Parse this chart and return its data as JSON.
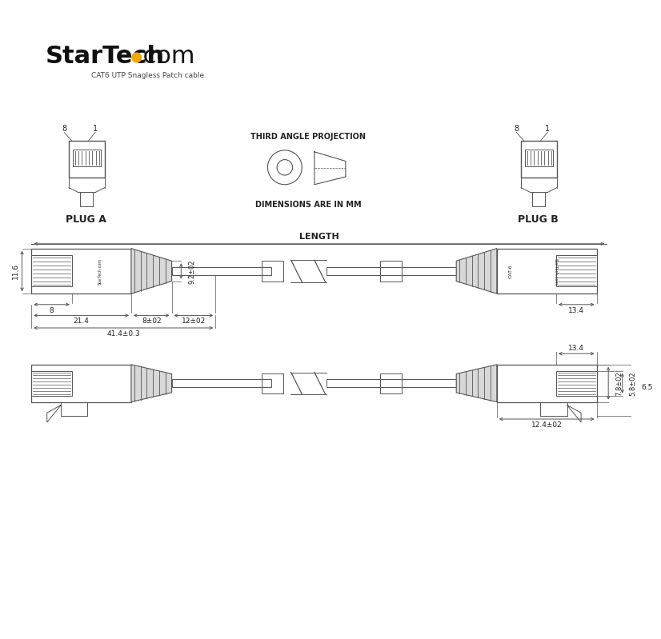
{
  "bg_color": "#ffffff",
  "line_color": "#555555",
  "text_color": "#222222",
  "dot_color": "#f5a800",
  "subtitle": "CAT6 UTP Snagless Patch cable",
  "plug_a_label": "PLUG A",
  "plug_b_label": "PLUG B",
  "third_angle": "THIRD ANGLE PROJECTION",
  "dimensions_mm": "DIMENSIONS ARE IN MM",
  "length_label": "LENGTH",
  "dim_11_6": "11.6",
  "dim_8": "8",
  "dim_21_4": "21.4",
  "dim_8pm02": "8±02",
  "dim_12pm02": "12±02",
  "dim_41_4pm03": "41.4±0.3",
  "dim_9_2pm02": "9.2±02",
  "dim_13_4": "13.4",
  "dim_7_8pm02": "7.8±02",
  "dim_5_8pm02": "5.8±02",
  "dim_12_4pm02": "12.4±02",
  "dim_6_5": "6.5"
}
